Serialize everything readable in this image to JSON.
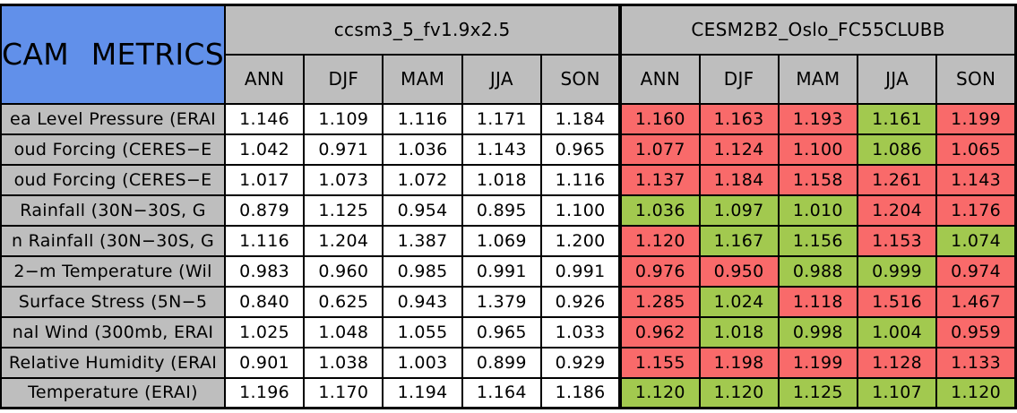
{
  "colors": {
    "red": "#F96A6A",
    "green": "#A2C94F",
    "header_gray": "#BEBEBE",
    "title_blue": "#6190EA",
    "border": "#000000",
    "plain_cell": "#FFFFFF"
  },
  "chart_data": {
    "type": "table",
    "title": "CAM METRICS",
    "column_groups": [
      {
        "label": "ccsm3_5_fv1.9x2.5",
        "columns": [
          "ANN",
          "DJF",
          "MAM",
          "JJA",
          "SON"
        ]
      },
      {
        "label": "CESM2B2_Oslo_FC55CLUBB",
        "columns": [
          "ANN",
          "DJF",
          "MAM",
          "JJA",
          "SON"
        ]
      }
    ],
    "legend_note": "left group cells plain white; right group cells colored red or green status",
    "rows": [
      {
        "label": "ea Level Pressure (ERAI",
        "ccsm": [
          "1.146",
          "1.109",
          "1.116",
          "1.171",
          "1.184"
        ],
        "cesm": [
          {
            "value": "1.160",
            "color": "red"
          },
          {
            "value": "1.163",
            "color": "red"
          },
          {
            "value": "1.193",
            "color": "red"
          },
          {
            "value": "1.161",
            "color": "green"
          },
          {
            "value": "1.199",
            "color": "red"
          }
        ]
      },
      {
        "label": "oud Forcing (CERES−E",
        "ccsm": [
          "1.042",
          "0.971",
          "1.036",
          "1.143",
          "0.965"
        ],
        "cesm": [
          {
            "value": "1.077",
            "color": "red"
          },
          {
            "value": "1.124",
            "color": "red"
          },
          {
            "value": "1.100",
            "color": "red"
          },
          {
            "value": "1.086",
            "color": "green"
          },
          {
            "value": "1.065",
            "color": "red"
          }
        ]
      },
      {
        "label": "oud Forcing (CERES−E",
        "ccsm": [
          "1.017",
          "1.073",
          "1.072",
          "1.018",
          "1.116"
        ],
        "cesm": [
          {
            "value": "1.137",
            "color": "red"
          },
          {
            "value": "1.184",
            "color": "red"
          },
          {
            "value": "1.158",
            "color": "red"
          },
          {
            "value": "1.261",
            "color": "red"
          },
          {
            "value": "1.143",
            "color": "red"
          }
        ]
      },
      {
        "label": "Rainfall (30N−30S, G",
        "ccsm": [
          "0.879",
          "1.125",
          "0.954",
          "0.895",
          "1.100"
        ],
        "cesm": [
          {
            "value": "1.036",
            "color": "green"
          },
          {
            "value": "1.097",
            "color": "green"
          },
          {
            "value": "1.010",
            "color": "green"
          },
          {
            "value": "1.204",
            "color": "red"
          },
          {
            "value": "1.176",
            "color": "red"
          }
        ]
      },
      {
        "label": "n Rainfall (30N−30S, G",
        "ccsm": [
          "1.116",
          "1.204",
          "1.387",
          "1.069",
          "1.200"
        ],
        "cesm": [
          {
            "value": "1.120",
            "color": "red"
          },
          {
            "value": "1.167",
            "color": "green"
          },
          {
            "value": "1.156",
            "color": "green"
          },
          {
            "value": "1.153",
            "color": "red"
          },
          {
            "value": "1.074",
            "color": "green"
          }
        ]
      },
      {
        "label": "2−m Temperature (Wil",
        "ccsm": [
          "0.983",
          "0.960",
          "0.985",
          "0.991",
          "0.991"
        ],
        "cesm": [
          {
            "value": "0.976",
            "color": "red"
          },
          {
            "value": "0.950",
            "color": "red"
          },
          {
            "value": "0.988",
            "color": "green"
          },
          {
            "value": "0.999",
            "color": "green"
          },
          {
            "value": "0.974",
            "color": "red"
          }
        ]
      },
      {
        "label": "Surface Stress (5N−5",
        "ccsm": [
          "0.840",
          "0.625",
          "0.943",
          "1.379",
          "0.926"
        ],
        "cesm": [
          {
            "value": "1.285",
            "color": "red"
          },
          {
            "value": "1.024",
            "color": "green"
          },
          {
            "value": "1.118",
            "color": "red"
          },
          {
            "value": "1.516",
            "color": "red"
          },
          {
            "value": "1.467",
            "color": "red"
          }
        ]
      },
      {
        "label": "nal Wind (300mb, ERAI",
        "ccsm": [
          "1.025",
          "1.048",
          "1.055",
          "0.965",
          "1.033"
        ],
        "cesm": [
          {
            "value": "0.962",
            "color": "red"
          },
          {
            "value": "1.018",
            "color": "green"
          },
          {
            "value": "0.998",
            "color": "green"
          },
          {
            "value": "1.004",
            "color": "green"
          },
          {
            "value": "0.959",
            "color": "red"
          }
        ]
      },
      {
        "label": "Relative Humidity (ERAI",
        "ccsm": [
          "0.901",
          "1.038",
          "1.003",
          "0.899",
          "0.929"
        ],
        "cesm": [
          {
            "value": "1.155",
            "color": "red"
          },
          {
            "value": "1.198",
            "color": "red"
          },
          {
            "value": "1.199",
            "color": "red"
          },
          {
            "value": "1.128",
            "color": "red"
          },
          {
            "value": "1.133",
            "color": "red"
          }
        ]
      },
      {
        "label": "Temperature (ERAI)",
        "ccsm": [
          "1.196",
          "1.170",
          "1.194",
          "1.164",
          "1.186"
        ],
        "cesm": [
          {
            "value": "1.120",
            "color": "green"
          },
          {
            "value": "1.120",
            "color": "green"
          },
          {
            "value": "1.125",
            "color": "green"
          },
          {
            "value": "1.107",
            "color": "green"
          },
          {
            "value": "1.120",
            "color": "green"
          }
        ]
      }
    ]
  }
}
